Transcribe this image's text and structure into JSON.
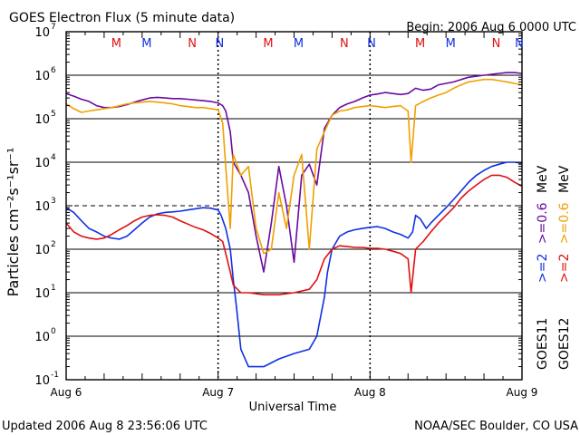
{
  "header": {
    "title": "GOES Electron Flux (5 minute data)",
    "begin": "Begin: 2006 Aug 6 0000 UTC"
  },
  "footer": {
    "updated": "Updated 2006 Aug  8 23:56:06 UTC",
    "credit": "NOAA/SEC Boulder, CO USA"
  },
  "colors": {
    "goes11_2mev": "#1030e0",
    "goes12_2mev": "#e01010",
    "goes11_06mev": "#6a0aa0",
    "goes12_06mev": "#f0a000",
    "threshold": "#000000"
  },
  "chart_data": {
    "type": "line",
    "title": "GOES Electron Flux (5 minute data)",
    "xlabel": "Universal Time",
    "ylabel": "Particles cm⁻²s⁻¹sr⁻¹",
    "x_unit": "days since Aug 6 0000 UTC",
    "xlim": [
      0,
      3
    ],
    "ylim_log10": [
      -1,
      7
    ],
    "yscale": "log",
    "x_ticks": [
      {
        "x": 0,
        "label": "Aug 6"
      },
      {
        "x": 1,
        "label": "Aug 7"
      },
      {
        "x": 2,
        "label": "Aug 8"
      },
      {
        "x": 3,
        "label": "Aug 9"
      }
    ],
    "y_ticks": [
      {
        "exp": -1,
        "base": "10",
        "sup": "-1"
      },
      {
        "exp": 0,
        "base": "10",
        "sup": "0"
      },
      {
        "exp": 1,
        "base": "10",
        "sup": "1"
      },
      {
        "exp": 2,
        "base": "10",
        "sup": "2"
      },
      {
        "exp": 3,
        "base": "10",
        "sup": "3"
      },
      {
        "exp": 4,
        "base": "10",
        "sup": "4"
      },
      {
        "exp": 5,
        "base": "10",
        "sup": "5"
      },
      {
        "exp": 6,
        "base": "10",
        "sup": "6"
      },
      {
        "exp": 7,
        "base": "10",
        "sup": "7"
      }
    ],
    "threshold_line": {
      "y": 1000
    },
    "markers": [
      {
        "x": 0.33,
        "label": "M",
        "sat": "goes12"
      },
      {
        "x": 0.53,
        "label": "M",
        "sat": "goes11"
      },
      {
        "x": 0.83,
        "label": "N",
        "sat": "goes12"
      },
      {
        "x": 1.01,
        "label": "N",
        "sat": "goes11"
      },
      {
        "x": 1.33,
        "label": "M",
        "sat": "goes12"
      },
      {
        "x": 1.53,
        "label": "M",
        "sat": "goes11"
      },
      {
        "x": 1.83,
        "label": "N",
        "sat": "goes12"
      },
      {
        "x": 2.01,
        "label": "N",
        "sat": "goes11"
      },
      {
        "x": 2.33,
        "label": "M",
        "sat": "goes12"
      },
      {
        "x": 2.53,
        "label": "M",
        "sat": "goes11"
      },
      {
        "x": 2.83,
        "label": "N",
        "sat": "goes12"
      },
      {
        "x": 3.01,
        "label": "N",
        "sat": "goes11"
      }
    ],
    "legend": [
      {
        "label": ">=2 >=0.6 MeV",
        "group": "GOES11"
      },
      {
        "label": ">=2 >=0.6 MeV",
        "group": "GOES12"
      }
    ],
    "legend_parts": {
      "ge2": ">=2",
      "ge06": ">=0.6",
      "mev": "MeV",
      "goes11": "GOES11",
      "goes12": "GOES12"
    },
    "series": [
      {
        "name": "GOES11 >=2 MeV",
        "color_key": "goes11_2mev",
        "points": [
          [
            0,
            900
          ],
          [
            0.05,
            700
          ],
          [
            0.1,
            450
          ],
          [
            0.15,
            300
          ],
          [
            0.2,
            250
          ],
          [
            0.25,
            200
          ],
          [
            0.3,
            180
          ],
          [
            0.35,
            170
          ],
          [
            0.4,
            200
          ],
          [
            0.45,
            280
          ],
          [
            0.5,
            400
          ],
          [
            0.55,
            550
          ],
          [
            0.6,
            650
          ],
          [
            0.65,
            700
          ],
          [
            0.7,
            720
          ],
          [
            0.75,
            750
          ],
          [
            0.8,
            800
          ],
          [
            0.85,
            850
          ],
          [
            0.9,
            900
          ],
          [
            0.95,
            880
          ],
          [
            1.0,
            800
          ],
          [
            1.02,
            600
          ],
          [
            1.05,
            300
          ],
          [
            1.08,
            100
          ],
          [
            1.1,
            20
          ],
          [
            1.12,
            5
          ],
          [
            1.15,
            0.5
          ],
          [
            1.2,
            0.2
          ],
          [
            1.3,
            0.2
          ],
          [
            1.4,
            0.3
          ],
          [
            1.5,
            0.4
          ],
          [
            1.6,
            0.5
          ],
          [
            1.65,
            1
          ],
          [
            1.7,
            8
          ],
          [
            1.72,
            30
          ],
          [
            1.75,
            100
          ],
          [
            1.8,
            200
          ],
          [
            1.85,
            250
          ],
          [
            1.9,
            280
          ],
          [
            1.95,
            300
          ],
          [
            2.0,
            320
          ],
          [
            2.05,
            330
          ],
          [
            2.1,
            300
          ],
          [
            2.15,
            250
          ],
          [
            2.2,
            220
          ],
          [
            2.25,
            180
          ],
          [
            2.28,
            250
          ],
          [
            2.3,
            600
          ],
          [
            2.33,
            500
          ],
          [
            2.37,
            300
          ],
          [
            2.4,
            400
          ],
          [
            2.45,
            600
          ],
          [
            2.5,
            900
          ],
          [
            2.55,
            1400
          ],
          [
            2.6,
            2200
          ],
          [
            2.65,
            3500
          ],
          [
            2.7,
            5000
          ],
          [
            2.75,
            6500
          ],
          [
            2.8,
            8000
          ],
          [
            2.85,
            9000
          ],
          [
            2.9,
            10000
          ],
          [
            2.95,
            10000
          ],
          [
            3.0,
            9500
          ]
        ]
      },
      {
        "name": "GOES12 >=2 MeV",
        "color_key": "goes12_2mev",
        "points": [
          [
            0,
            400
          ],
          [
            0.05,
            250
          ],
          [
            0.1,
            200
          ],
          [
            0.15,
            180
          ],
          [
            0.2,
            170
          ],
          [
            0.25,
            180
          ],
          [
            0.3,
            220
          ],
          [
            0.35,
            280
          ],
          [
            0.4,
            350
          ],
          [
            0.45,
            450
          ],
          [
            0.5,
            550
          ],
          [
            0.55,
            600
          ],
          [
            0.6,
            620
          ],
          [
            0.65,
            600
          ],
          [
            0.7,
            550
          ],
          [
            0.75,
            450
          ],
          [
            0.8,
            380
          ],
          [
            0.85,
            320
          ],
          [
            0.9,
            280
          ],
          [
            0.95,
            230
          ],
          [
            1.0,
            180
          ],
          [
            1.03,
            150
          ],
          [
            1.05,
            80
          ],
          [
            1.08,
            30
          ],
          [
            1.1,
            15
          ],
          [
            1.15,
            10
          ],
          [
            1.2,
            10
          ],
          [
            1.3,
            9
          ],
          [
            1.4,
            9
          ],
          [
            1.5,
            10
          ],
          [
            1.6,
            12
          ],
          [
            1.65,
            20
          ],
          [
            1.7,
            60
          ],
          [
            1.75,
            100
          ],
          [
            1.8,
            120
          ],
          [
            1.85,
            115
          ],
          [
            1.9,
            110
          ],
          [
            1.95,
            110
          ],
          [
            2.0,
            105
          ],
          [
            2.05,
            105
          ],
          [
            2.1,
            100
          ],
          [
            2.15,
            90
          ],
          [
            2.2,
            80
          ],
          [
            2.25,
            60
          ],
          [
            2.27,
            10
          ],
          [
            2.3,
            100
          ],
          [
            2.35,
            150
          ],
          [
            2.4,
            250
          ],
          [
            2.45,
            400
          ],
          [
            2.5,
            600
          ],
          [
            2.55,
            900
          ],
          [
            2.6,
            1500
          ],
          [
            2.65,
            2200
          ],
          [
            2.7,
            3000
          ],
          [
            2.75,
            4000
          ],
          [
            2.8,
            5000
          ],
          [
            2.85,
            5000
          ],
          [
            2.9,
            4500
          ],
          [
            2.95,
            3500
          ],
          [
            3.0,
            2800
          ]
        ]
      },
      {
        "name": "GOES11 >=0.6 MeV",
        "color_key": "goes11_06mev",
        "points": [
          [
            0,
            380000
          ],
          [
            0.05,
            330000
          ],
          [
            0.1,
            280000
          ],
          [
            0.15,
            250000
          ],
          [
            0.2,
            200000
          ],
          [
            0.25,
            180000
          ],
          [
            0.3,
            180000
          ],
          [
            0.35,
            190000
          ],
          [
            0.4,
            210000
          ],
          [
            0.45,
            240000
          ],
          [
            0.5,
            270000
          ],
          [
            0.55,
            300000
          ],
          [
            0.6,
            310000
          ],
          [
            0.65,
            300000
          ],
          [
            0.7,
            290000
          ],
          [
            0.75,
            290000
          ],
          [
            0.8,
            280000
          ],
          [
            0.85,
            270000
          ],
          [
            0.9,
            260000
          ],
          [
            0.95,
            250000
          ],
          [
            1.0,
            230000
          ],
          [
            1.03,
            200000
          ],
          [
            1.05,
            150000
          ],
          [
            1.08,
            50000
          ],
          [
            1.1,
            10000
          ],
          [
            1.15,
            5000
          ],
          [
            1.2,
            2000
          ],
          [
            1.25,
            200
          ],
          [
            1.3,
            30
          ],
          [
            1.35,
            400
          ],
          [
            1.4,
            8000
          ],
          [
            1.45,
            1000
          ],
          [
            1.5,
            50
          ],
          [
            1.55,
            5000
          ],
          [
            1.6,
            9000
          ],
          [
            1.65,
            3000
          ],
          [
            1.7,
            60000
          ],
          [
            1.75,
            120000
          ],
          [
            1.8,
            180000
          ],
          [
            1.85,
            220000
          ],
          [
            1.9,
            250000
          ],
          [
            1.95,
            300000
          ],
          [
            2.0,
            350000
          ],
          [
            2.05,
            370000
          ],
          [
            2.1,
            400000
          ],
          [
            2.15,
            380000
          ],
          [
            2.2,
            360000
          ],
          [
            2.25,
            380000
          ],
          [
            2.3,
            500000
          ],
          [
            2.35,
            450000
          ],
          [
            2.4,
            480000
          ],
          [
            2.45,
            600000
          ],
          [
            2.5,
            650000
          ],
          [
            2.55,
            700000
          ],
          [
            2.6,
            800000
          ],
          [
            2.65,
            900000
          ],
          [
            2.7,
            950000
          ],
          [
            2.75,
            1000000
          ],
          [
            2.8,
            1050000
          ],
          [
            2.85,
            1100000
          ],
          [
            2.9,
            1150000
          ],
          [
            2.95,
            1150000
          ],
          [
            3.0,
            1100000
          ]
        ]
      },
      {
        "name": "GOES12 >=0.6 MeV",
        "color_key": "goes12_06mev",
        "points": [
          [
            0,
            220000
          ],
          [
            0.05,
            170000
          ],
          [
            0.1,
            140000
          ],
          [
            0.15,
            150000
          ],
          [
            0.2,
            160000
          ],
          [
            0.25,
            170000
          ],
          [
            0.3,
            180000
          ],
          [
            0.35,
            200000
          ],
          [
            0.4,
            220000
          ],
          [
            0.45,
            230000
          ],
          [
            0.5,
            240000
          ],
          [
            0.55,
            250000
          ],
          [
            0.6,
            240000
          ],
          [
            0.65,
            230000
          ],
          [
            0.7,
            220000
          ],
          [
            0.75,
            200000
          ],
          [
            0.8,
            190000
          ],
          [
            0.85,
            180000
          ],
          [
            0.9,
            180000
          ],
          [
            0.95,
            170000
          ],
          [
            1.0,
            160000
          ],
          [
            1.03,
            80000
          ],
          [
            1.05,
            8000
          ],
          [
            1.08,
            300
          ],
          [
            1.1,
            15000
          ],
          [
            1.15,
            5000
          ],
          [
            1.2,
            8000
          ],
          [
            1.25,
            300
          ],
          [
            1.3,
            80
          ],
          [
            1.35,
            100
          ],
          [
            1.4,
            2000
          ],
          [
            1.45,
            300
          ],
          [
            1.5,
            5000
          ],
          [
            1.55,
            15000
          ],
          [
            1.6,
            100
          ],
          [
            1.65,
            20000
          ],
          [
            1.7,
            50000
          ],
          [
            1.75,
            120000
          ],
          [
            1.8,
            150000
          ],
          [
            1.85,
            160000
          ],
          [
            1.9,
            180000
          ],
          [
            1.95,
            190000
          ],
          [
            2.0,
            200000
          ],
          [
            2.05,
            190000
          ],
          [
            2.1,
            180000
          ],
          [
            2.15,
            190000
          ],
          [
            2.2,
            200000
          ],
          [
            2.25,
            150000
          ],
          [
            2.27,
            10000
          ],
          [
            2.3,
            200000
          ],
          [
            2.35,
            250000
          ],
          [
            2.4,
            300000
          ],
          [
            2.45,
            350000
          ],
          [
            2.5,
            400000
          ],
          [
            2.55,
            500000
          ],
          [
            2.6,
            600000
          ],
          [
            2.65,
            700000
          ],
          [
            2.7,
            750000
          ],
          [
            2.75,
            800000
          ],
          [
            2.8,
            800000
          ],
          [
            2.85,
            750000
          ],
          [
            2.9,
            700000
          ],
          [
            2.95,
            650000
          ],
          [
            3.0,
            600000
          ]
        ]
      }
    ]
  }
}
